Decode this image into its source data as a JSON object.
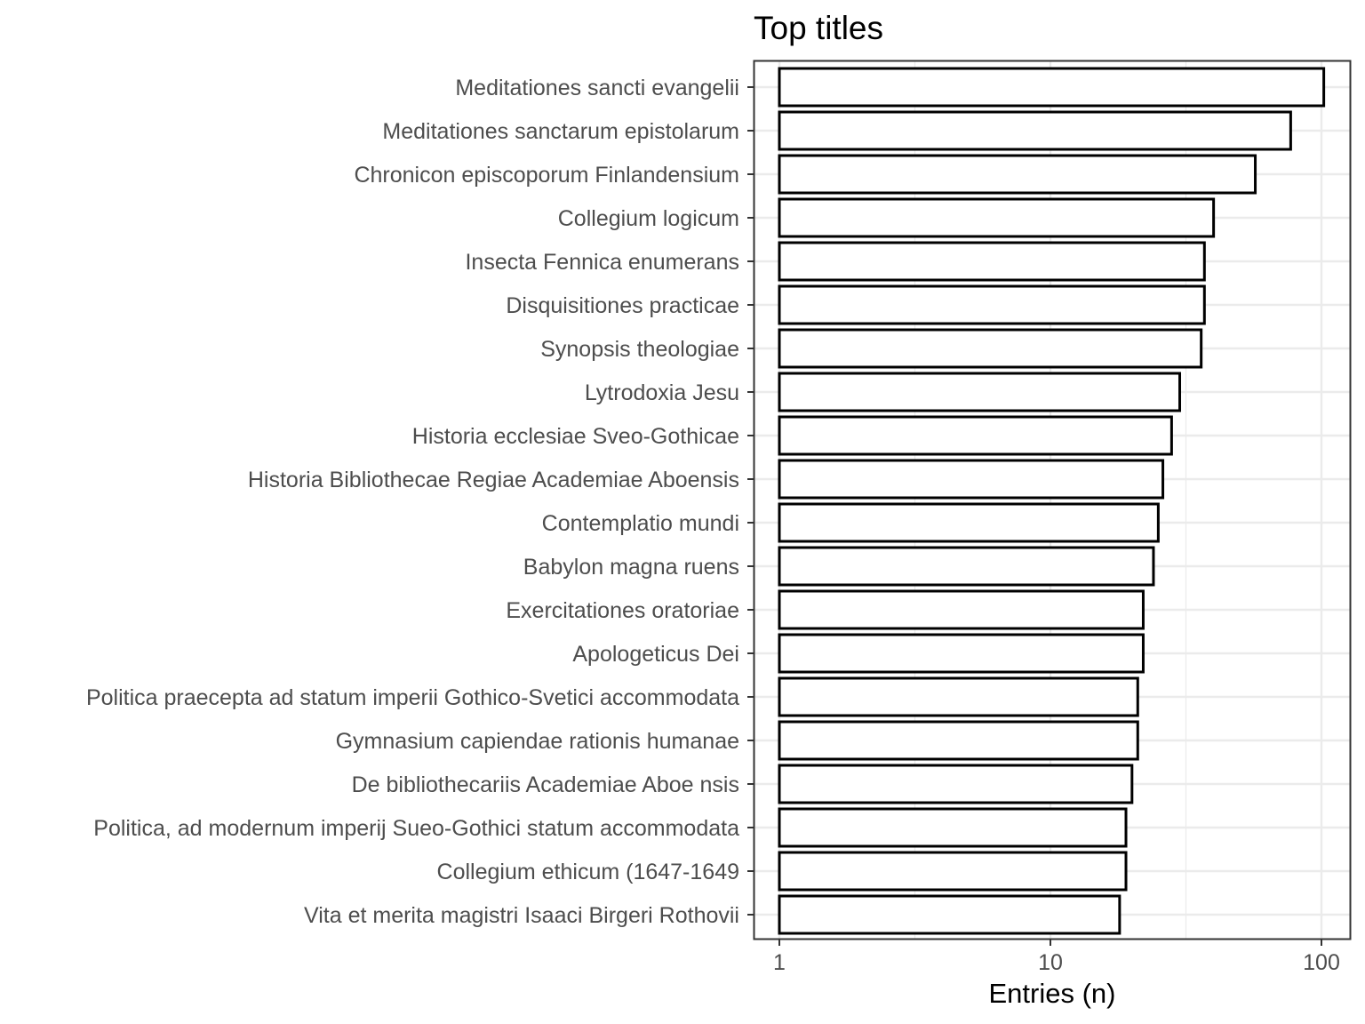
{
  "chart_data": {
    "type": "bar",
    "orientation": "horizontal",
    "title": "Top titles",
    "xlabel": "Entries (n)",
    "ylabel": "",
    "x_scale": "log10",
    "xlim": [
      0.91,
      115
    ],
    "x_ticks": [
      1,
      10,
      100
    ],
    "x_tick_labels": [
      "1",
      "10",
      "100"
    ],
    "grid": true,
    "categories": [
      "Meditationes sancti evangelii",
      "Meditationes sanctarum epistolarum",
      "Chronicon episcoporum Finlandensium",
      "Collegium logicum",
      "Insecta Fennica enumerans",
      "Disquisitiones practicae",
      "Synopsis theologiae",
      "Lytrodoxia Jesu",
      "Historia ecclesiae Sveo-Gothicae",
      "Historia Bibliothecae Regiae Academiae Aboensis",
      "Contemplatio mundi",
      "Babylon magna ruens",
      "Exercitationes oratoriae",
      "Apologeticus Dei",
      "Politica praecepta ad statum imperii Gothico-Svetici accommodata",
      "Gymnasium capiendae rationis humanae",
      "De bibliothecariis Academiae Aboe nsis",
      "Politica, ad modernum imperij Sueo-Gothici statum accommodata",
      "Collegium ethicum (1647-1649",
      "Vita et merita magistri Isaaci Birgeri Rothovii"
    ],
    "values": [
      102,
      77,
      57,
      40,
      37,
      37,
      36,
      30,
      28,
      26,
      25,
      24,
      22,
      22,
      21,
      21,
      20,
      19,
      19,
      18
    ],
    "bar_fill": "#ffffff",
    "bar_stroke": "#000000",
    "grid_color": "#ebebeb",
    "panel_border_color": "#333333"
  }
}
